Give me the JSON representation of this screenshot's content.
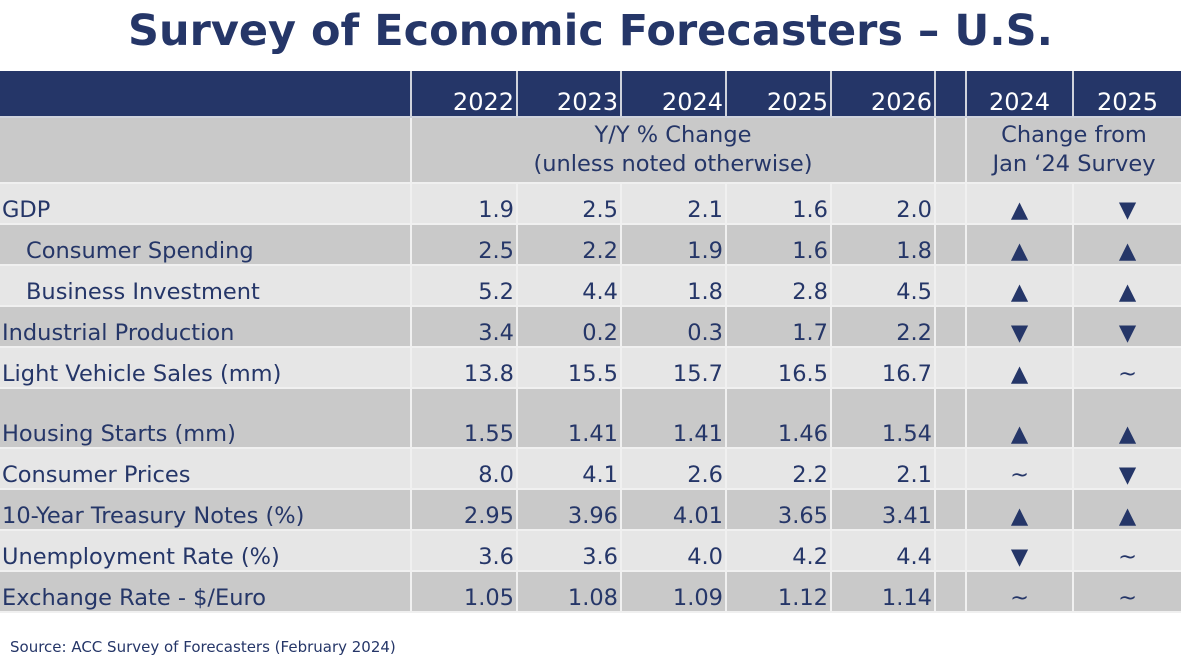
{
  "title": "Survey of Economic Forecasters – U.S.",
  "columns": [
    "2022",
    "2023",
    "2024",
    "2025",
    "2026"
  ],
  "change_columns": [
    "2024",
    "2025"
  ],
  "subheader": {
    "line1": "Y/Y % Change",
    "line2": "(unless noted otherwise)",
    "change_line1": "Change from",
    "change_line2": "Jan ‘24 Survey"
  },
  "rows": [
    {
      "label": "GDP",
      "indent": false,
      "values": [
        "1.9",
        "2.5",
        "2.1",
        "1.6",
        "2.0"
      ],
      "changes": [
        "▲",
        "▼"
      ]
    },
    {
      "label": "Consumer Spending",
      "indent": true,
      "values": [
        "2.5",
        "2.2",
        "1.9",
        "1.6",
        "1.8"
      ],
      "changes": [
        "▲",
        "▲"
      ]
    },
    {
      "label": "Business Investment",
      "indent": true,
      "values": [
        "5.2",
        "4.4",
        "1.8",
        "2.8",
        "4.5"
      ],
      "changes": [
        "▲",
        "▲"
      ]
    },
    {
      "label": "Industrial Production",
      "indent": false,
      "values": [
        "3.4",
        "0.2",
        "0.3",
        "1.7",
        "2.2"
      ],
      "changes": [
        "▼",
        "▼"
      ]
    },
    {
      "label": "Light Vehicle Sales (mm)",
      "indent": false,
      "values": [
        "13.8",
        "15.5",
        "15.7",
        "16.5",
        "16.7"
      ],
      "changes": [
        "▲",
        "~"
      ]
    },
    {
      "label": "Housing Starts (mm)",
      "indent": false,
      "values": [
        "1.55",
        "1.41",
        "1.41",
        "1.46",
        "1.54"
      ],
      "changes": [
        "▲",
        "▲"
      ]
    },
    {
      "label": "Consumer Prices",
      "indent": false,
      "values": [
        "8.0",
        "4.1",
        "2.6",
        "2.2",
        "2.1"
      ],
      "changes": [
        "~",
        "▼"
      ]
    },
    {
      "label": "10-Year Treasury Notes (%)",
      "indent": false,
      "values": [
        "2.95",
        "3.96",
        "4.01",
        "3.65",
        "3.41"
      ],
      "changes": [
        "▲",
        "▲"
      ]
    },
    {
      "label": "Unemployment Rate (%)",
      "indent": false,
      "values": [
        "3.6",
        "3.6",
        "4.0",
        "4.2",
        "4.4"
      ],
      "changes": [
        "▼",
        "~"
      ]
    },
    {
      "label": "Exchange Rate - $/Euro",
      "indent": false,
      "values": [
        "1.05",
        "1.08",
        "1.09",
        "1.12",
        "1.14"
      ],
      "changes": [
        "~",
        "~"
      ]
    }
  ],
  "source": "Source:  ACC Survey  of Forecasters (February 2024)",
  "colors": {
    "navy": "#253668",
    "light_row": "#e6e6e6",
    "dark_row": "#c9c9c9"
  }
}
